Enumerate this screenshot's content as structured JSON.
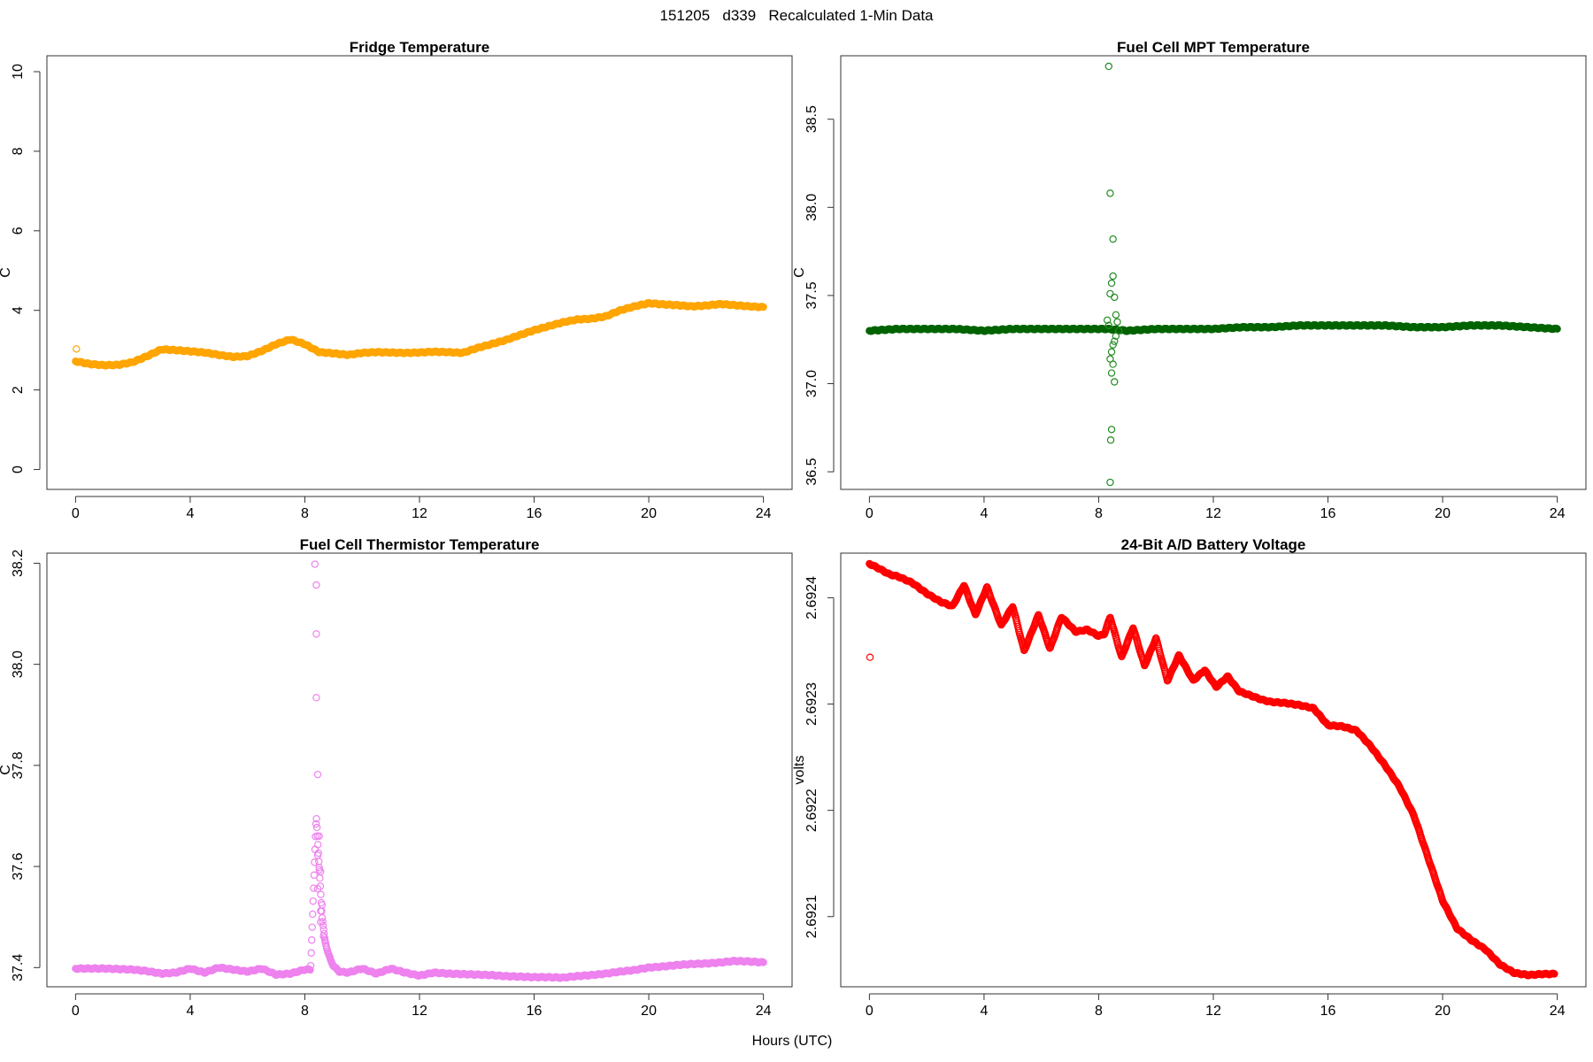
{
  "figure": {
    "title": "151205   d339   Recalculated 1-Min Data",
    "xlabel": "Hours (UTC)"
  },
  "chart_data": [
    {
      "type": "scatter",
      "title": "Fridge Temperature",
      "ylabel": "C",
      "color": "#FFA500",
      "xlim": [
        -1,
        25
      ],
      "ylim": [
        -0.5,
        10.4
      ],
      "xticks": [
        0,
        4,
        8,
        12,
        16,
        20,
        24
      ],
      "xtick_labels": [
        "0",
        "4",
        "8",
        "12",
        "16",
        "20",
        "24"
      ],
      "yticks": [
        0,
        2,
        4,
        6,
        8,
        10
      ],
      "ytick_labels": [
        "0",
        "2",
        "4",
        "6",
        "8",
        "10"
      ],
      "series": [
        {
          "name": "Fridge Temperature",
          "x": [
            0,
            0.5,
            1,
            1.5,
            2,
            2.5,
            3,
            3.5,
            4,
            4.5,
            5,
            5.5,
            6,
            6.5,
            7,
            7.5,
            8,
            8.5,
            9,
            9.5,
            10,
            10.5,
            11,
            11.5,
            12,
            12.5,
            13,
            13.5,
            14,
            14.5,
            15,
            15.5,
            16,
            16.5,
            17,
            17.5,
            18,
            18.5,
            19,
            19.5,
            20,
            20.5,
            21,
            21.5,
            22,
            22.5,
            23,
            23.5,
            24
          ],
          "y": [
            2.72,
            2.65,
            2.62,
            2.63,
            2.7,
            2.85,
            3.02,
            3.0,
            2.97,
            2.94,
            2.88,
            2.83,
            2.85,
            2.98,
            3.15,
            3.27,
            3.15,
            2.95,
            2.92,
            2.88,
            2.93,
            2.95,
            2.94,
            2.93,
            2.94,
            2.96,
            2.95,
            2.93,
            3.05,
            3.15,
            3.25,
            3.38,
            3.5,
            3.6,
            3.7,
            3.77,
            3.79,
            3.85,
            4.0,
            4.1,
            4.18,
            4.15,
            4.13,
            4.1,
            4.12,
            4.16,
            4.13,
            4.1,
            4.08
          ]
        }
      ],
      "outliers": [
        {
          "x": 0.03,
          "y": 3.03
        }
      ]
    },
    {
      "type": "scatter",
      "title": "Fuel Cell MPT Temperature",
      "ylabel": "C",
      "color": "#006400",
      "outlier_color": "#228B22",
      "xlim": [
        -1,
        25
      ],
      "ylim": [
        36.4,
        38.86
      ],
      "xticks": [
        0,
        4,
        8,
        12,
        16,
        20,
        24
      ],
      "xtick_labels": [
        "0",
        "4",
        "8",
        "12",
        "16",
        "20",
        "24"
      ],
      "yticks": [
        36.5,
        37.0,
        37.5,
        38.0,
        38.5
      ],
      "ytick_labels": [
        "36.5",
        "37.0",
        "37.5",
        "38.0",
        "38.5"
      ],
      "series": [
        {
          "name": "Fuel Cell MPT Temperature",
          "x": [
            0,
            1,
            2,
            3,
            4,
            5,
            6,
            7,
            8,
            8.3,
            9,
            10,
            11,
            12,
            13,
            14,
            15,
            16,
            17,
            18,
            19,
            20,
            21,
            22,
            23,
            24
          ],
          "y": [
            37.3,
            37.31,
            37.31,
            37.31,
            37.3,
            37.31,
            37.31,
            37.31,
            37.31,
            37.31,
            37.3,
            37.31,
            37.31,
            37.31,
            37.32,
            37.32,
            37.33,
            37.33,
            37.33,
            37.33,
            37.32,
            37.32,
            37.33,
            37.33,
            37.32,
            37.31
          ]
        }
      ],
      "outliers": [
        {
          "x": 8.35,
          "y": 38.8
        },
        {
          "x": 8.4,
          "y": 38.08
        },
        {
          "x": 8.5,
          "y": 37.82
        },
        {
          "x": 8.5,
          "y": 37.61
        },
        {
          "x": 8.45,
          "y": 37.57
        },
        {
          "x": 8.4,
          "y": 37.51
        },
        {
          "x": 8.55,
          "y": 37.49
        },
        {
          "x": 8.6,
          "y": 37.39
        },
        {
          "x": 8.3,
          "y": 37.36
        },
        {
          "x": 8.65,
          "y": 37.35
        },
        {
          "x": 8.35,
          "y": 37.33
        },
        {
          "x": 8.7,
          "y": 37.3
        },
        {
          "x": 8.6,
          "y": 37.27
        },
        {
          "x": 8.55,
          "y": 37.24
        },
        {
          "x": 8.5,
          "y": 37.22
        },
        {
          "x": 8.45,
          "y": 37.18
        },
        {
          "x": 8.4,
          "y": 37.14
        },
        {
          "x": 8.5,
          "y": 37.11
        },
        {
          "x": 8.45,
          "y": 37.06
        },
        {
          "x": 8.55,
          "y": 37.01
        },
        {
          "x": 8.45,
          "y": 36.74
        },
        {
          "x": 8.42,
          "y": 36.68
        },
        {
          "x": 8.4,
          "y": 36.44
        }
      ]
    },
    {
      "type": "scatter",
      "title": "Fuel Cell Thermistor Temperature",
      "ylabel": "C",
      "color": "#EE82EE",
      "xlim": [
        -1,
        25
      ],
      "ylim": [
        37.362,
        38.22
      ],
      "xticks": [
        0,
        4,
        8,
        12,
        16,
        20,
        24
      ],
      "xtick_labels": [
        "0",
        "4",
        "8",
        "12",
        "16",
        "20",
        "24"
      ],
      "yticks": [
        37.4,
        37.6,
        37.8,
        38.0,
        38.2
      ],
      "ytick_labels": [
        "37.4",
        "37.6",
        "37.8",
        "38.0",
        "38.2"
      ],
      "series": [
        {
          "name": "Fuel Cell Thermistor Temperature",
          "x": [
            0,
            0.5,
            1,
            1.5,
            2,
            2.5,
            3,
            3.5,
            4,
            4.5,
            5,
            5.5,
            6,
            6.5,
            7,
            7.5,
            8,
            8.2,
            8.4,
            8.5,
            8.6,
            8.7,
            8.8,
            8.9,
            9.0,
            9.2,
            9.5,
            10,
            10.5,
            11,
            11.5,
            12,
            12.5,
            13,
            13.5,
            14,
            14.5,
            15,
            15.5,
            16,
            16.5,
            17,
            17.5,
            18,
            18.5,
            19,
            19.5,
            20,
            20.5,
            21,
            21.5,
            22,
            22.5,
            23,
            23.5,
            24
          ],
          "y": [
            37.398,
            37.398,
            37.398,
            37.397,
            37.396,
            37.393,
            37.388,
            37.39,
            37.398,
            37.39,
            37.4,
            37.396,
            37.392,
            37.398,
            37.386,
            37.388,
            37.396,
            37.396,
            37.7,
            37.6,
            37.5,
            37.455,
            37.43,
            37.415,
            37.403,
            37.392,
            37.39,
            37.398,
            37.388,
            37.398,
            37.39,
            37.384,
            37.39,
            37.388,
            37.387,
            37.386,
            37.385,
            37.383,
            37.382,
            37.381,
            37.381,
            37.38,
            37.383,
            37.385,
            37.388,
            37.392,
            37.395,
            37.4,
            37.402,
            37.405,
            37.407,
            37.408,
            37.41,
            37.413,
            37.412,
            37.41
          ]
        }
      ],
      "outliers": [
        {
          "x": 8.35,
          "y": 38.198
        },
        {
          "x": 8.4,
          "y": 38.157
        },
        {
          "x": 8.4,
          "y": 38.06
        },
        {
          "x": 8.4,
          "y": 37.934
        },
        {
          "x": 8.45,
          "y": 37.782
        },
        {
          "x": 8.5,
          "y": 37.66
        },
        {
          "x": 8.45,
          "y": 37.622
        },
        {
          "x": 8.5,
          "y": 37.598
        },
        {
          "x": 8.55,
          "y": 37.59
        },
        {
          "x": 8.45,
          "y": 37.556
        },
        {
          "x": 8.6,
          "y": 37.524
        },
        {
          "x": 8.55,
          "y": 37.512
        },
        {
          "x": 8.55,
          "y": 37.49
        },
        {
          "x": 8.65,
          "y": 37.462
        },
        {
          "x": 8.7,
          "y": 37.455
        }
      ]
    },
    {
      "type": "scatter",
      "title": "24-Bit A/D Battery Voltage",
      "ylabel": "volts",
      "color": "#FF0000",
      "xlim": [
        -1,
        25
      ],
      "ylim": [
        2.692034,
        2.692442
      ],
      "xticks": [
        0,
        4,
        8,
        12,
        16,
        20,
        24
      ],
      "xtick_labels": [
        "0",
        "4",
        "8",
        "12",
        "16",
        "20",
        "24"
      ],
      "yticks": [
        2.6921,
        2.6922,
        2.6923,
        2.6924
      ],
      "ytick_labels": [
        "2.6921",
        "2.6922",
        "2.6923",
        "2.6924"
      ],
      "series": [
        {
          "name": "24-Bit A/D Battery Voltage",
          "x": [
            0,
            0.3,
            0.7,
            1.0,
            1.5,
            2.0,
            2.5,
            2.9,
            3.3,
            3.7,
            4.1,
            4.6,
            5.0,
            5.4,
            5.9,
            6.3,
            6.7,
            7.2,
            7.6,
            8.0,
            8.2,
            8.4,
            8.8,
            9.2,
            9.6,
            10.0,
            10.4,
            10.8,
            11.3,
            11.7,
            12.1,
            12.5,
            12.9,
            13.3,
            13.7,
            14.0,
            14.5,
            15.0,
            15.5,
            16.0,
            16.5,
            17.0,
            17.5,
            18.0,
            18.5,
            19.0,
            19.5,
            20.0,
            20.5,
            21.0,
            21.5,
            22.0,
            22.5,
            23.0,
            23.5,
            23.9
          ],
          "y": [
            2.692432,
            2.692428,
            2.692422,
            2.69242,
            2.692414,
            2.692404,
            2.692396,
            2.692392,
            2.692412,
            2.692384,
            2.69241,
            2.692374,
            2.692392,
            2.69235,
            2.692384,
            2.692352,
            2.692382,
            2.692368,
            2.69237,
            2.692364,
            2.692366,
            2.692382,
            2.692344,
            2.692372,
            2.692336,
            2.692362,
            2.692322,
            2.692346,
            2.692322,
            2.692332,
            2.692316,
            2.692326,
            2.692312,
            2.692308,
            2.692304,
            2.692302,
            2.692301,
            2.692299,
            2.692296,
            2.69228,
            2.692279,
            2.692275,
            2.69226,
            2.692242,
            2.692222,
            2.692195,
            2.692155,
            2.692115,
            2.692089,
            2.692078,
            2.692069,
            2.692055,
            2.692047,
            2.692045,
            2.692046,
            2.692046
          ]
        }
      ],
      "outliers": [
        {
          "x": 0.02,
          "y": 2.692344
        }
      ]
    }
  ]
}
